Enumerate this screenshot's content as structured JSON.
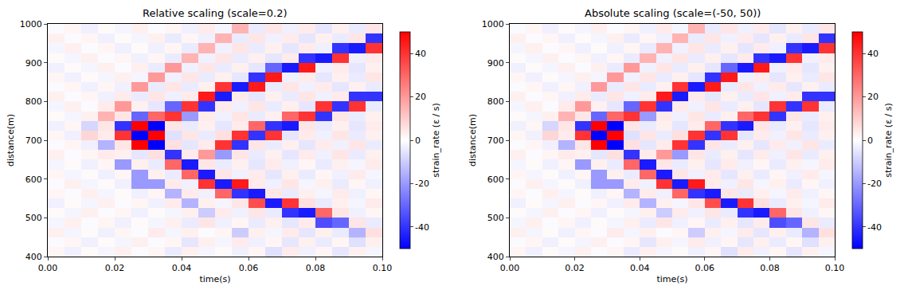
{
  "chart_data": [
    {
      "type": "heatmap",
      "title": "Relative scaling (scale=0.2)",
      "x_label": "time(s)",
      "y_label": "distance(m)",
      "colorbar_label": "strain_rate (ε / s)",
      "colorbar_range": [
        -50,
        50
      ],
      "colorbar_ticks": [
        -40,
        -20,
        0,
        20,
        40
      ],
      "xlim": [
        0,
        0.1
      ],
      "ylim": [
        400,
        1000
      ],
      "xticks": [
        {
          "value": 0,
          "label": "0.00"
        },
        {
          "value": 0.02,
          "label": "0.02"
        },
        {
          "value": 0.04,
          "label": "0.04"
        },
        {
          "value": 0.06,
          "label": "0.06"
        },
        {
          "value": 0.08,
          "label": "0.08"
        },
        {
          "value": 0.1,
          "label": "0.10"
        }
      ],
      "yticks": [
        400,
        500,
        600,
        700,
        800,
        900,
        1000
      ],
      "grid": false,
      "x": [
        0.0025,
        0.0075,
        0.0125,
        0.0175,
        0.0225,
        0.0275,
        0.0325,
        0.0375,
        0.0425,
        0.0475,
        0.0525,
        0.0575,
        0.0625,
        0.0675,
        0.0725,
        0.0775,
        0.0825,
        0.0875,
        0.0925,
        0.0975
      ],
      "y": [
        412.5,
        437.5,
        462.5,
        487.5,
        512.5,
        537.5,
        562.5,
        587.5,
        612.5,
        637.5,
        662.5,
        687.5,
        712.5,
        737.5,
        762.5,
        787.5,
        812.5,
        837.5,
        862.5,
        887.5,
        912.5,
        937.5,
        962.5,
        987.5
      ],
      "z": [
        [
          2,
          -3,
          1,
          -2,
          3,
          -1,
          2,
          -4,
          3,
          -2,
          1,
          -3,
          2,
          -6,
          4,
          -3,
          2,
          -5,
          3,
          -2
        ],
        [
          -1,
          2,
          -3,
          1,
          -2,
          3,
          -1,
          2,
          -5,
          3,
          -2,
          4,
          -3,
          2,
          -5,
          3,
          -4,
          2,
          -6,
          3
        ],
        [
          3,
          -2,
          1,
          -3,
          2,
          -1,
          4,
          -2,
          3,
          -1,
          2,
          -10,
          3,
          -2,
          4,
          -5,
          3,
          -4,
          -15,
          6
        ],
        [
          -2,
          3,
          -1,
          2,
          -3,
          1,
          -2,
          3,
          -4,
          5,
          -3,
          2,
          -4,
          3,
          -5,
          4,
          -35,
          -30,
          5,
          -4
        ],
        [
          1,
          -2,
          3,
          -1,
          2,
          -3,
          1,
          -2,
          3,
          -10,
          4,
          -3,
          5,
          -4,
          -40,
          -45,
          30,
          5,
          -3,
          2
        ],
        [
          -3,
          1,
          -2,
          3,
          -1,
          2,
          -3,
          4,
          -15,
          3,
          -2,
          5,
          35,
          -45,
          40,
          6,
          -4,
          3,
          -2,
          4
        ],
        [
          2,
          -1,
          3,
          -2,
          1,
          -3,
          2,
          -15,
          4,
          -3,
          30,
          -40,
          -45,
          5,
          -4,
          3,
          -2,
          4,
          -3,
          2
        ],
        [
          -1,
          3,
          -2,
          1,
          -3,
          -20,
          -20,
          4,
          -3,
          40,
          -45,
          45,
          4,
          -3,
          5,
          -2,
          3,
          -4,
          2,
          -3
        ],
        [
          2,
          -2,
          1,
          -3,
          2,
          -20,
          3,
          -4,
          30,
          -45,
          5,
          -3,
          4,
          -5,
          3,
          -4,
          2,
          -3,
          4,
          -2
        ],
        [
          -2,
          1,
          -3,
          2,
          -20,
          3,
          -4,
          30,
          -45,
          5,
          -4,
          3,
          -5,
          4,
          -3,
          2,
          -4,
          3,
          -2,
          4
        ],
        [
          3,
          -1,
          2,
          4,
          3,
          -5,
          6,
          -40,
          4,
          20,
          -20,
          5,
          -4,
          3,
          -5,
          4,
          -3,
          5,
          -4,
          3
        ],
        [
          -1,
          2,
          -3,
          -15,
          5,
          50,
          -50,
          6,
          -5,
          4,
          40,
          -40,
          5,
          -4,
          3,
          -5,
          4,
          -3,
          5,
          -4
        ],
        [
          2,
          -3,
          8,
          4,
          40,
          -50,
          50,
          -6,
          5,
          -4,
          6,
          40,
          -40,
          40,
          -5,
          4,
          -3,
          5,
          -4,
          3
        ],
        [
          -3,
          2,
          -8,
          5,
          -40,
          50,
          -50,
          5,
          -4,
          3,
          -5,
          4,
          30,
          -40,
          -45,
          5,
          -4,
          3,
          -5,
          4
        ],
        [
          1,
          -2,
          3,
          15,
          5,
          -30,
          30,
          40,
          -20,
          4,
          -3,
          5,
          -4,
          3,
          30,
          40,
          -40,
          5,
          -4,
          3
        ],
        [
          -2,
          3,
          -1,
          4,
          20,
          3,
          -5,
          -30,
          40,
          -40,
          4,
          -3,
          5,
          -4,
          3,
          -5,
          40,
          -40,
          40,
          -4
        ],
        [
          3,
          -1,
          2,
          -3,
          4,
          -4,
          5,
          -3,
          4,
          45,
          -45,
          4,
          -5,
          3,
          -4,
          5,
          -3,
          4,
          -40,
          -40
        ],
        [
          -1,
          2,
          -3,
          2,
          -3,
          20,
          -4,
          5,
          -4,
          3,
          40,
          -45,
          45,
          -4,
          5,
          -3,
          4,
          -5,
          3,
          -4
        ],
        [
          2,
          -3,
          1,
          -2,
          3,
          -2,
          20,
          -3,
          5,
          -4,
          3,
          -5,
          -40,
          45,
          -3,
          4,
          -5,
          3,
          -4,
          5
        ],
        [
          -3,
          1,
          -2,
          3,
          -1,
          3,
          -4,
          20,
          -3,
          5,
          -4,
          3,
          -5,
          -30,
          -45,
          45,
          -3,
          4,
          -5,
          3
        ],
        [
          1,
          -2,
          3,
          -1,
          2,
          -3,
          2,
          -4,
          15,
          -3,
          5,
          -4,
          3,
          -5,
          4,
          -40,
          -45,
          40,
          -3,
          4
        ],
        [
          -2,
          3,
          -1,
          2,
          -3,
          1,
          -3,
          2,
          -4,
          15,
          -3,
          5,
          -4,
          3,
          -5,
          4,
          -3,
          -40,
          -45,
          40
        ],
        [
          3,
          -1,
          2,
          -3,
          1,
          -2,
          3,
          -4,
          2,
          -3,
          15,
          -4,
          5,
          -3,
          4,
          -5,
          3,
          -4,
          5,
          -40
        ],
        [
          -1,
          2,
          -3,
          1,
          -2,
          3,
          -1,
          2,
          -3,
          4,
          -2,
          15,
          -4,
          5,
          -3,
          4,
          -5,
          3,
          -4,
          5
        ]
      ]
    },
    {
      "type": "heatmap",
      "title": "Absolute scaling (scale=(-50, 50))",
      "x_label": "time(s)",
      "y_label": "distance(m)",
      "colorbar_label": "strain_rate (ε / s)",
      "colorbar_range": [
        -50,
        50
      ],
      "colorbar_ticks": [
        -40,
        -20,
        0,
        20,
        40
      ],
      "xlim": [
        0,
        0.1
      ],
      "ylim": [
        400,
        1000
      ],
      "xticks": [
        {
          "value": 0,
          "label": "0.00"
        },
        {
          "value": 0.02,
          "label": "0.02"
        },
        {
          "value": 0.04,
          "label": "0.04"
        },
        {
          "value": 0.06,
          "label": "0.06"
        },
        {
          "value": 0.08,
          "label": "0.08"
        },
        {
          "value": 0.1,
          "label": "0.10"
        }
      ],
      "yticks": [
        400,
        500,
        600,
        700,
        800,
        900,
        1000
      ],
      "grid": false,
      "x": [
        0.0025,
        0.0075,
        0.0125,
        0.0175,
        0.0225,
        0.0275,
        0.0325,
        0.0375,
        0.0425,
        0.0475,
        0.0525,
        0.0575,
        0.0625,
        0.0675,
        0.0725,
        0.0775,
        0.0825,
        0.0875,
        0.0925,
        0.0975
      ],
      "y": [
        412.5,
        437.5,
        462.5,
        487.5,
        512.5,
        537.5,
        562.5,
        587.5,
        612.5,
        637.5,
        662.5,
        687.5,
        712.5,
        737.5,
        762.5,
        787.5,
        812.5,
        837.5,
        862.5,
        887.5,
        912.5,
        937.5,
        962.5,
        987.5
      ],
      "z": [
        [
          2,
          -3,
          1,
          -2,
          3,
          -1,
          2,
          -4,
          3,
          -2,
          1,
          -3,
          2,
          -6,
          4,
          -3,
          2,
          -5,
          3,
          -2
        ],
        [
          -1,
          2,
          -3,
          1,
          -2,
          3,
          -1,
          2,
          -5,
          3,
          -2,
          4,
          -3,
          2,
          -5,
          3,
          -4,
          2,
          -6,
          3
        ],
        [
          3,
          -2,
          1,
          -3,
          2,
          -1,
          4,
          -2,
          3,
          -1,
          2,
          -10,
          3,
          -2,
          4,
          -5,
          3,
          -4,
          -15,
          6
        ],
        [
          -2,
          3,
          -1,
          2,
          -3,
          1,
          -2,
          3,
          -4,
          5,
          -3,
          2,
          -4,
          3,
          -5,
          4,
          -35,
          -30,
          5,
          -4
        ],
        [
          1,
          -2,
          3,
          -1,
          2,
          -3,
          1,
          -2,
          3,
          -10,
          4,
          -3,
          5,
          -4,
          -40,
          -45,
          30,
          5,
          -3,
          2
        ],
        [
          -3,
          1,
          -2,
          3,
          -1,
          2,
          -3,
          4,
          -15,
          3,
          -2,
          5,
          35,
          -45,
          40,
          6,
          -4,
          3,
          -2,
          4
        ],
        [
          2,
          -1,
          3,
          -2,
          1,
          -3,
          2,
          -15,
          4,
          -3,
          30,
          -40,
          -45,
          5,
          -4,
          3,
          -2,
          4,
          -3,
          2
        ],
        [
          -1,
          3,
          -2,
          1,
          -3,
          -20,
          -20,
          4,
          -3,
          40,
          -45,
          45,
          4,
          -3,
          5,
          -2,
          3,
          -4,
          2,
          -3
        ],
        [
          2,
          -2,
          1,
          -3,
          2,
          -20,
          3,
          -4,
          30,
          -45,
          5,
          -3,
          4,
          -5,
          3,
          -4,
          2,
          -3,
          4,
          -2
        ],
        [
          -2,
          1,
          -3,
          2,
          -20,
          3,
          -4,
          30,
          -45,
          5,
          -4,
          3,
          -5,
          4,
          -3,
          2,
          -4,
          3,
          -2,
          4
        ],
        [
          3,
          -1,
          2,
          4,
          3,
          -5,
          6,
          -40,
          4,
          20,
          -20,
          5,
          -4,
          3,
          -5,
          4,
          -3,
          5,
          -4,
          3
        ],
        [
          -1,
          2,
          -3,
          -15,
          5,
          50,
          -50,
          6,
          -5,
          4,
          40,
          -40,
          5,
          -4,
          3,
          -5,
          4,
          -3,
          5,
          -4
        ],
        [
          2,
          -3,
          8,
          4,
          40,
          -50,
          50,
          -6,
          5,
          -4,
          6,
          40,
          -40,
          40,
          -5,
          4,
          -3,
          5,
          -4,
          3
        ],
        [
          -3,
          2,
          -8,
          5,
          -40,
          50,
          -50,
          5,
          -4,
          3,
          -5,
          4,
          30,
          -40,
          -45,
          5,
          -4,
          3,
          -5,
          4
        ],
        [
          1,
          -2,
          3,
          15,
          5,
          -30,
          30,
          40,
          -20,
          4,
          -3,
          5,
          -4,
          3,
          30,
          40,
          -40,
          5,
          -4,
          3
        ],
        [
          -2,
          3,
          -1,
          4,
          20,
          3,
          -5,
          -30,
          40,
          -40,
          4,
          -3,
          5,
          -4,
          3,
          -5,
          40,
          -40,
          40,
          -4
        ],
        [
          3,
          -1,
          2,
          -3,
          4,
          -4,
          5,
          -3,
          4,
          45,
          -45,
          4,
          -5,
          3,
          -4,
          5,
          -3,
          4,
          -40,
          -40
        ],
        [
          -1,
          2,
          -3,
          2,
          -3,
          20,
          -4,
          5,
          -4,
          3,
          40,
          -45,
          45,
          -4,
          5,
          -3,
          4,
          -5,
          3,
          -4
        ],
        [
          2,
          -3,
          1,
          -2,
          3,
          -2,
          20,
          -3,
          5,
          -4,
          3,
          -5,
          -40,
          45,
          -3,
          4,
          -5,
          3,
          -4,
          5
        ],
        [
          -3,
          1,
          -2,
          3,
          -1,
          3,
          -4,
          20,
          -3,
          5,
          -4,
          3,
          -5,
          -30,
          -45,
          45,
          -3,
          4,
          -5,
          3
        ],
        [
          1,
          -2,
          3,
          -1,
          2,
          -3,
          2,
          -4,
          15,
          -3,
          5,
          -4,
          3,
          -5,
          4,
          -40,
          -45,
          40,
          -3,
          4
        ],
        [
          -2,
          3,
          -1,
          2,
          -3,
          1,
          -3,
          2,
          -4,
          15,
          -3,
          5,
          -4,
          3,
          -5,
          4,
          -3,
          -40,
          -45,
          40
        ],
        [
          3,
          -1,
          2,
          -3,
          1,
          -2,
          3,
          -4,
          2,
          -3,
          15,
          -4,
          5,
          -3,
          4,
          -5,
          3,
          -4,
          5,
          -40
        ],
        [
          -1,
          2,
          -3,
          1,
          -2,
          3,
          -1,
          2,
          -3,
          4,
          -2,
          15,
          -4,
          5,
          -3,
          4,
          -5,
          3,
          -4,
          5
        ]
      ]
    }
  ]
}
